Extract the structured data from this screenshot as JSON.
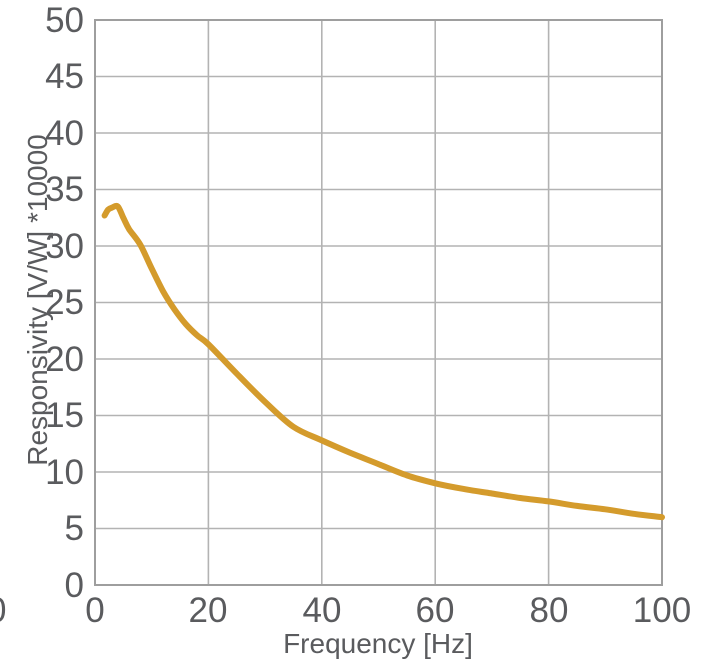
{
  "chart_data": {
    "type": "line",
    "title": "",
    "xlabel": "Frequency [Hz]",
    "ylabel": "Responsivity [V/W] *10000",
    "xlim": [
      0,
      100
    ],
    "ylim": [
      0,
      50
    ],
    "x_ticks": [
      0,
      20,
      40,
      60,
      80,
      100
    ],
    "y_ticks": [
      0,
      5,
      10,
      15,
      20,
      25,
      30,
      35,
      40,
      45,
      50
    ],
    "grid": true,
    "legend": "none",
    "series": [
      {
        "name": "Responsivity",
        "color": "#D49B2C",
        "x": [
          1.7,
          2.3,
          3,
          4,
          5,
          6,
          8,
          10,
          12,
          14,
          16,
          18,
          20,
          25,
          30,
          35,
          40,
          45,
          50,
          55,
          60,
          65,
          70,
          75,
          80,
          85,
          90,
          95,
          100
        ],
        "y": [
          32.7,
          33.2,
          33.4,
          33.5,
          32.5,
          31.5,
          30.1,
          28.0,
          26.0,
          24.4,
          23.1,
          22.1,
          21.3,
          18.7,
          16.2,
          14.0,
          12.8,
          11.7,
          10.7,
          9.7,
          9.0,
          8.5,
          8.1,
          7.7,
          7.4,
          7.0,
          6.7,
          6.3,
          6.0
        ]
      }
    ]
  },
  "decorations": {
    "clipped_left_char": "0"
  },
  "colors": {
    "line": "#D49B2C",
    "grid": "#b3b3b3",
    "axis_box": "#9e9e9e",
    "text": "#5a5b5e",
    "background": "#ffffff"
  }
}
